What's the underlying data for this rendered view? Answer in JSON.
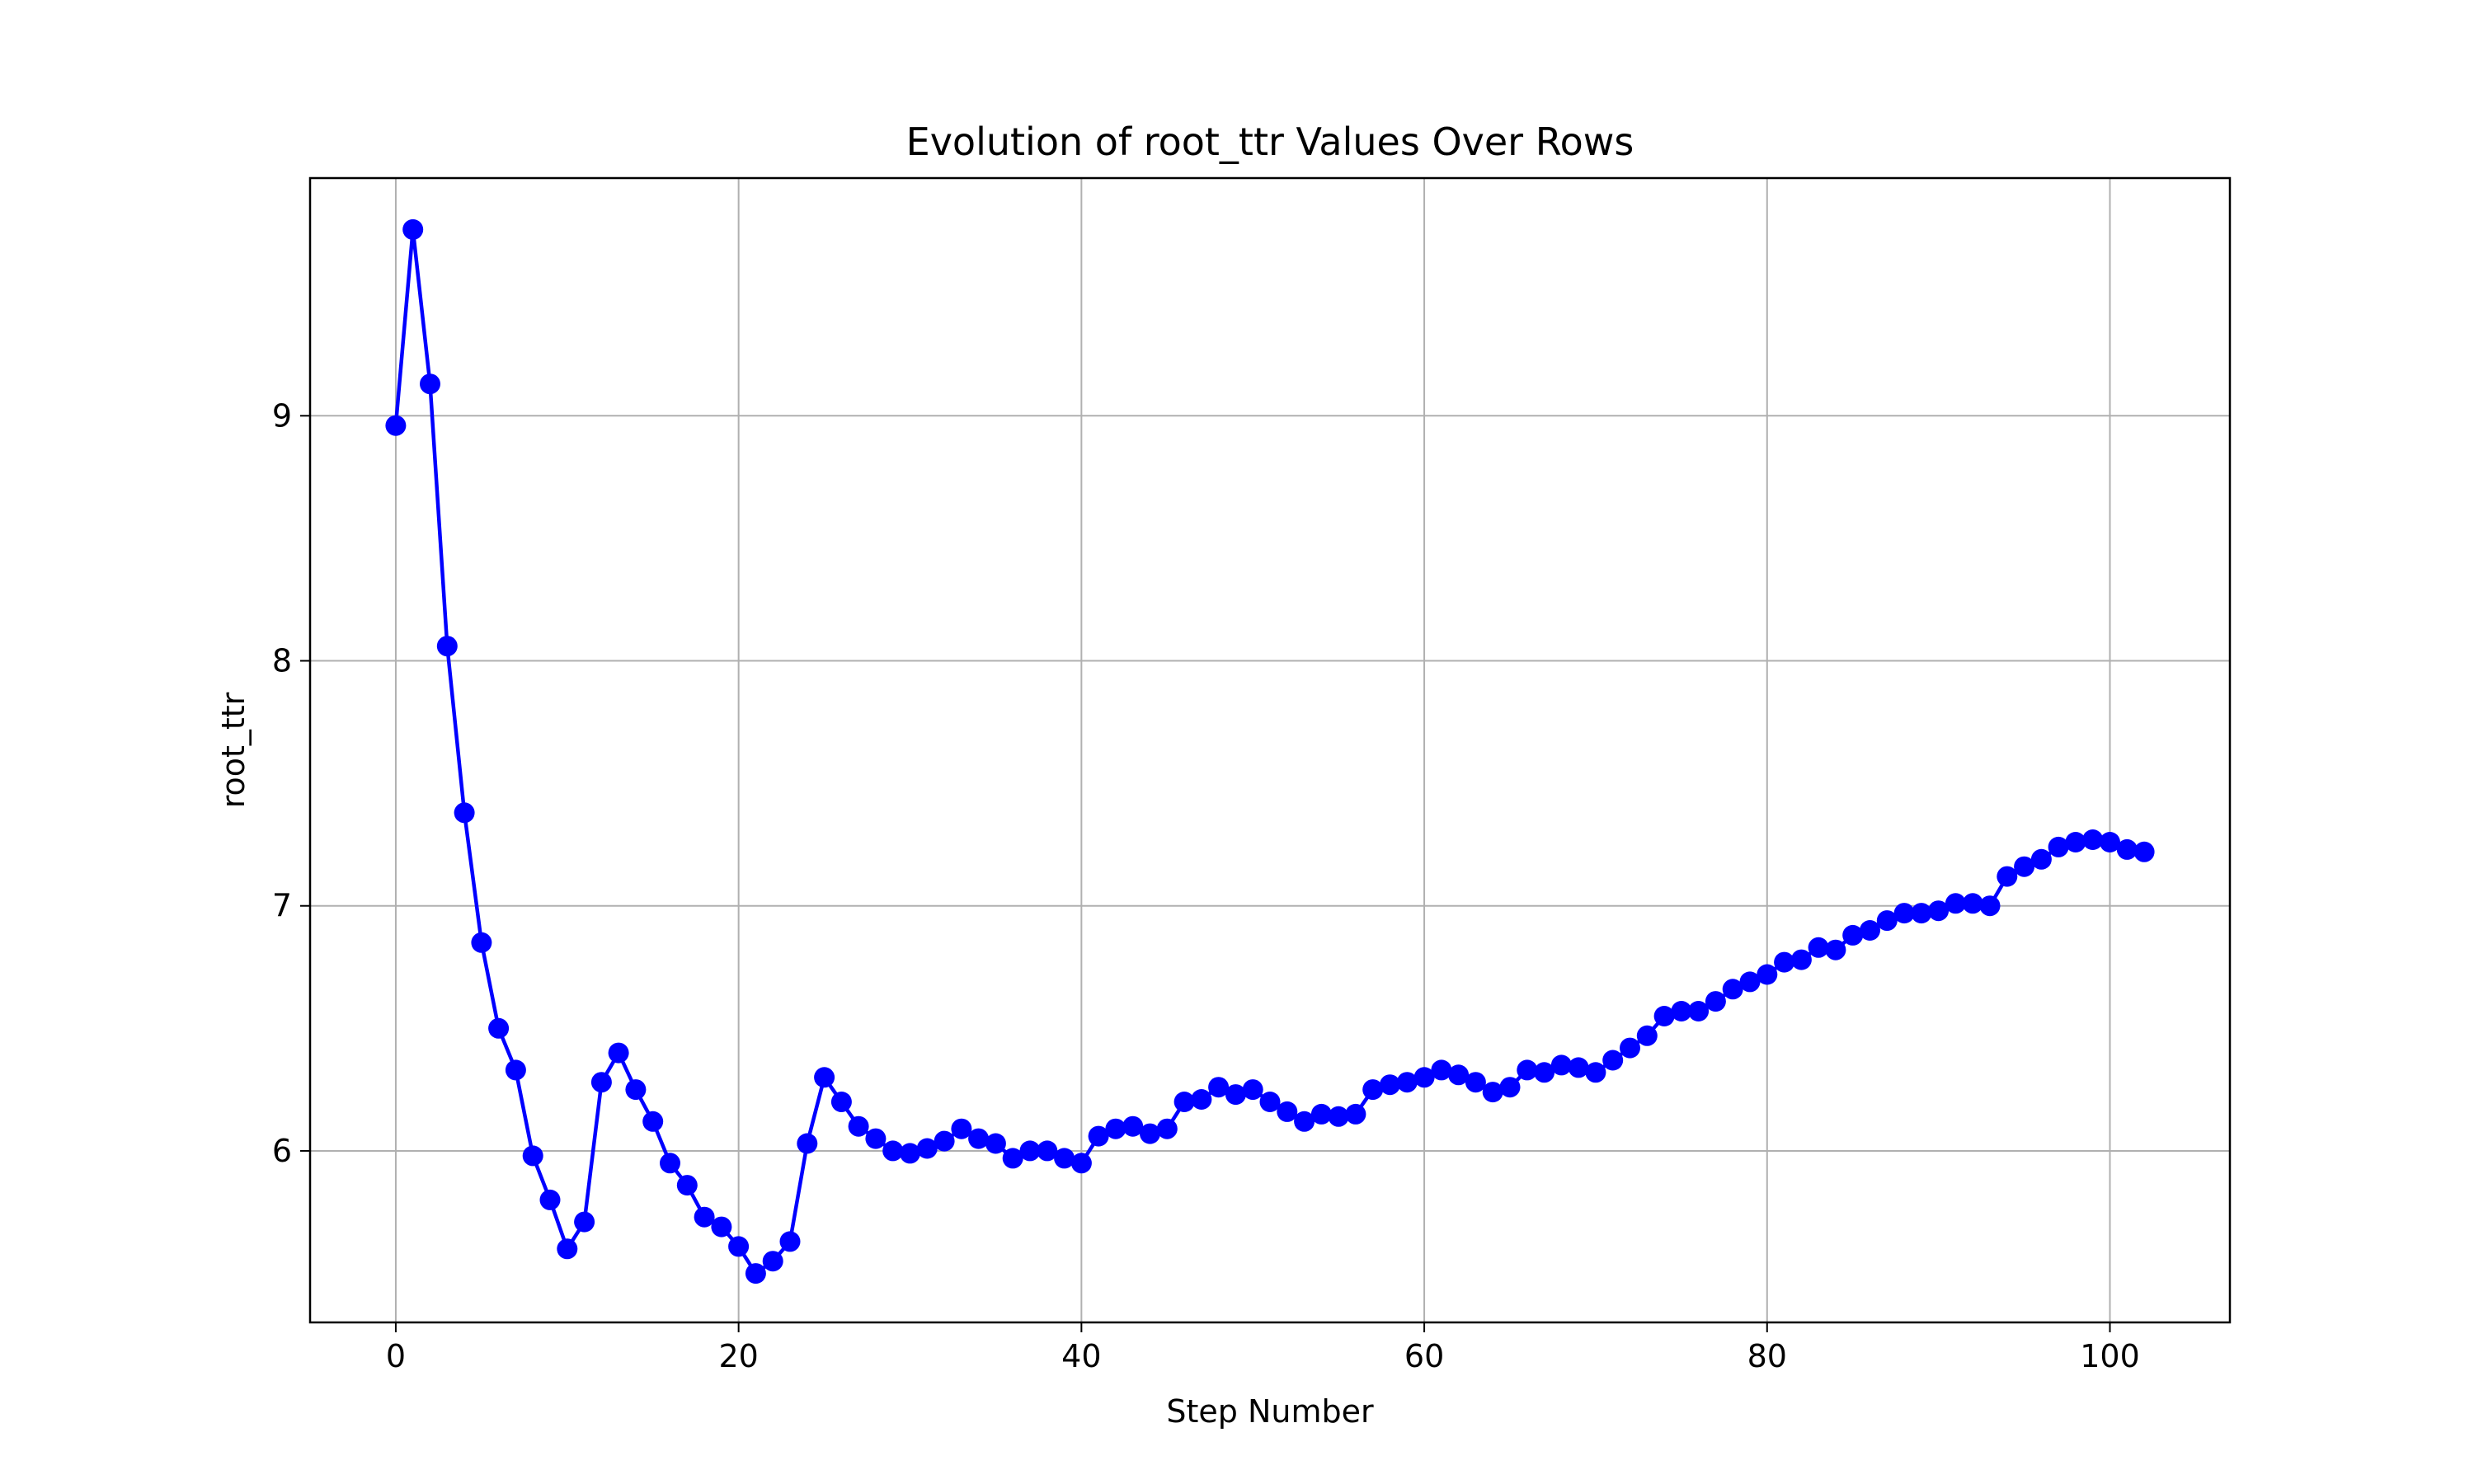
{
  "chart_data": {
    "type": "line",
    "title": "Evolution of root_ttr Values Over Rows",
    "xlabel": "Step Number",
    "ylabel": "root_ttr",
    "xlim": [
      -5,
      107
    ],
    "ylim": [
      5.3,
      9.97
    ],
    "x_ticks": [
      0,
      20,
      40,
      60,
      80,
      100
    ],
    "y_ticks": [
      6,
      7,
      8,
      9
    ],
    "grid": true,
    "legend": false,
    "series": [
      {
        "color": "#0000ff",
        "marker": "circle",
        "x": [
          0,
          1,
          2,
          3,
          4,
          5,
          6,
          7,
          8,
          9,
          10,
          11,
          12,
          13,
          14,
          15,
          16,
          17,
          18,
          19,
          20,
          21,
          22,
          23,
          24,
          25,
          26,
          27,
          28,
          29,
          30,
          31,
          32,
          33,
          34,
          35,
          36,
          37,
          38,
          39,
          40,
          41,
          42,
          43,
          44,
          45,
          46,
          47,
          48,
          49,
          50,
          51,
          52,
          53,
          54,
          55,
          56,
          57,
          58,
          59,
          60,
          61,
          62,
          63,
          64,
          65,
          66,
          67,
          68,
          69,
          70,
          71,
          72,
          73,
          74,
          75,
          76,
          77,
          78,
          79,
          80,
          81,
          82,
          83,
          84,
          85,
          86,
          87,
          88,
          89,
          90,
          91,
          92,
          93,
          94,
          95,
          96,
          97,
          98,
          99,
          100,
          101,
          102
        ],
        "values": [
          8.96,
          9.76,
          9.13,
          8.06,
          7.38,
          6.85,
          6.5,
          6.33,
          5.98,
          5.8,
          5.6,
          5.71,
          6.28,
          6.4,
          6.25,
          6.12,
          5.95,
          5.86,
          5.73,
          5.69,
          5.61,
          5.5,
          5.55,
          5.63,
          6.03,
          6.3,
          6.2,
          6.1,
          6.05,
          6.0,
          5.99,
          6.01,
          6.04,
          6.09,
          6.05,
          6.03,
          5.97,
          6.0,
          6.0,
          5.97,
          5.95,
          6.06,
          6.09,
          6.1,
          6.07,
          6.09,
          6.2,
          6.21,
          6.26,
          6.23,
          6.25,
          6.2,
          6.16,
          6.12,
          6.15,
          6.14,
          6.15,
          6.25,
          6.27,
          6.28,
          6.3,
          6.33,
          6.31,
          6.28,
          6.24,
          6.26,
          6.33,
          6.32,
          6.35,
          6.34,
          6.32,
          6.37,
          6.42,
          6.47,
          6.55,
          6.57,
          6.57,
          6.61,
          6.66,
          6.69,
          6.72,
          6.77,
          6.78,
          6.83,
          6.82,
          6.88,
          6.9,
          6.94,
          6.97,
          6.97,
          6.98,
          7.01,
          7.01,
          7.0,
          7.12,
          7.16,
          7.19,
          7.24,
          7.26,
          7.27,
          7.26,
          7.23,
          7.22
        ]
      }
    ]
  }
}
